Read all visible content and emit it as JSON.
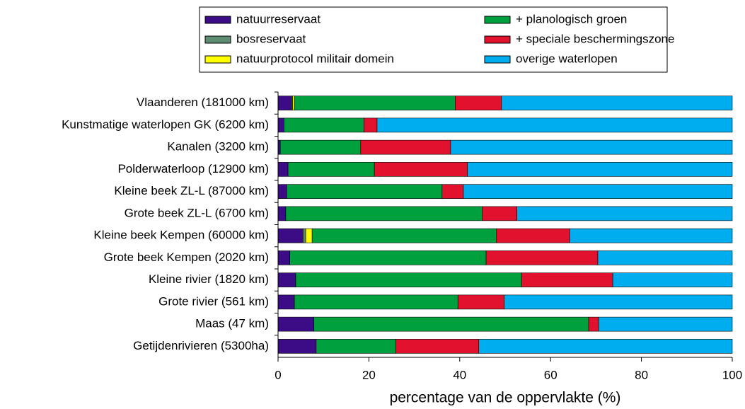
{
  "chart_data": {
    "type": "stacked-bar-horizontal",
    "x_label": "percentage van de oppervlakte (%)",
    "categories": [
      "Vlaanderen (181000 km)",
      "Kunstmatige waterlopen GK (6200 km)",
      "Kanalen (3200 km)",
      "Polderwaterloop (12900 km)",
      "Kleine beek ZL-L (87000 km)",
      "Grote beek ZL-L (6700 km)",
      "Kleine beek Kempen (60000 km)",
      "Grote beek Kempen (2020 km)",
      "Kleine rivier (1820 km)",
      "Grote rivier (561 km)",
      "Maas (47 km)",
      "Getijdenrivieren (5300ha)"
    ],
    "series": [
      {
        "name": "natuurreservaat",
        "color": "#3b0c85",
        "values": [
          3.0,
          1.3,
          0.5,
          2.2,
          1.9,
          1.7,
          5.5,
          2.6,
          3.9,
          3.6,
          7.9,
          8.4
        ]
      },
      {
        "name": "bosreservaat",
        "color": "#5e8c72",
        "values": [
          0.2,
          0,
          0,
          0,
          0,
          0,
          0.6,
          0,
          0,
          0,
          0,
          0
        ]
      },
      {
        "name": "natuurprotocol militair domein",
        "color": "#ffff00",
        "values": [
          0.4,
          0,
          0,
          0,
          0,
          0,
          1.4,
          0,
          0,
          0,
          0,
          0
        ]
      },
      {
        "name": "+ planologisch groen",
        "color": "#00a03e",
        "values": [
          35.4,
          17.6,
          17.7,
          19.0,
          34.2,
          43.3,
          40.6,
          43.2,
          49.7,
          36.0,
          60.5,
          17.5
        ]
      },
      {
        "name": "+ speciale beschermingszone",
        "color": "#e2112e",
        "values": [
          10.2,
          2.9,
          19.8,
          20.5,
          4.7,
          7.6,
          16.1,
          24.6,
          20.1,
          10.2,
          2.2,
          18.3
        ]
      },
      {
        "name": "overige waterlopen",
        "color": "#00aeef",
        "values": [
          50.8,
          78.2,
          62.0,
          58.3,
          59.2,
          47.4,
          35.8,
          29.6,
          26.3,
          50.2,
          29.4,
          55.8
        ]
      }
    ],
    "xlim": [
      0,
      100
    ],
    "xticks": [
      0,
      20,
      40,
      60,
      80,
      100
    ]
  }
}
